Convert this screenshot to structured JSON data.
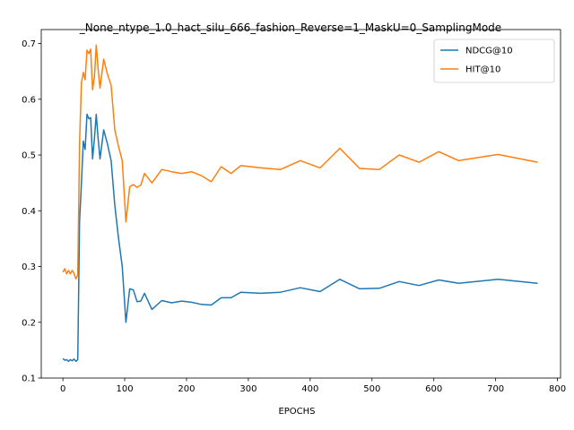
{
  "chart_data": {
    "type": "line",
    "title": "_None_ntype_1.0_hact_silu_666_fashion_Reverse=1_MaskU=0_SamplingMode",
    "xlabel": "EPOCHS",
    "ylabel": "",
    "xlim": [
      -35,
      805
    ],
    "ylim": [
      0.1,
      0.725
    ],
    "xticks": [
      0,
      100,
      200,
      300,
      400,
      500,
      600,
      700,
      800
    ],
    "yticks": [
      0.1,
      0.2,
      0.3,
      0.4,
      0.5,
      0.6,
      0.7
    ],
    "grid": false,
    "legend": "top-right",
    "series": [
      {
        "name": "NDCG@10",
        "color": "#1f77b4",
        "points": [
          [
            0,
            0.135
          ],
          [
            3,
            0.132
          ],
          [
            6,
            0.133
          ],
          [
            9,
            0.13
          ],
          [
            12,
            0.133
          ],
          [
            15,
            0.131
          ],
          [
            18,
            0.134
          ],
          [
            21,
            0.13
          ],
          [
            24,
            0.133
          ],
          [
            27,
            0.38
          ],
          [
            30,
            0.45
          ],
          [
            33,
            0.525
          ],
          [
            36,
            0.51
          ],
          [
            39,
            0.573
          ],
          [
            42,
            0.565
          ],
          [
            45,
            0.567
          ],
          [
            48,
            0.493
          ],
          [
            51,
            0.53
          ],
          [
            54,
            0.573
          ],
          [
            57,
            0.53
          ],
          [
            60,
            0.493
          ],
          [
            66,
            0.545
          ],
          [
            72,
            0.52
          ],
          [
            78,
            0.49
          ],
          [
            84,
            0.41
          ],
          [
            90,
            0.35
          ],
          [
            96,
            0.3
          ],
          [
            102,
            0.2
          ],
          [
            108,
            0.26
          ],
          [
            114,
            0.258
          ],
          [
            120,
            0.237
          ],
          [
            126,
            0.238
          ],
          [
            132,
            0.252
          ],
          [
            144,
            0.223
          ],
          [
            160,
            0.239
          ],
          [
            176,
            0.235
          ],
          [
            192,
            0.238
          ],
          [
            208,
            0.236
          ],
          [
            224,
            0.232
          ],
          [
            240,
            0.231
          ],
          [
            256,
            0.244
          ],
          [
            272,
            0.244
          ],
          [
            288,
            0.254
          ],
          [
            320,
            0.252
          ],
          [
            352,
            0.254
          ],
          [
            384,
            0.262
          ],
          [
            416,
            0.255
          ],
          [
            448,
            0.277
          ],
          [
            480,
            0.26
          ],
          [
            512,
            0.261
          ],
          [
            544,
            0.273
          ],
          [
            576,
            0.266
          ],
          [
            608,
            0.276
          ],
          [
            640,
            0.27
          ],
          [
            704,
            0.277
          ],
          [
            768,
            0.27
          ]
        ]
      },
      {
        "name": "HIT@10",
        "color": "#ff7f0e",
        "points": [
          [
            0,
            0.29
          ],
          [
            3,
            0.296
          ],
          [
            6,
            0.287
          ],
          [
            9,
            0.293
          ],
          [
            12,
            0.287
          ],
          [
            15,
            0.293
          ],
          [
            18,
            0.288
          ],
          [
            21,
            0.278
          ],
          [
            24,
            0.285
          ],
          [
            27,
            0.52
          ],
          [
            30,
            0.63
          ],
          [
            33,
            0.648
          ],
          [
            36,
            0.635
          ],
          [
            39,
            0.688
          ],
          [
            42,
            0.682
          ],
          [
            45,
            0.69
          ],
          [
            48,
            0.617
          ],
          [
            51,
            0.64
          ],
          [
            54,
            0.697
          ],
          [
            57,
            0.655
          ],
          [
            60,
            0.62
          ],
          [
            66,
            0.672
          ],
          [
            72,
            0.645
          ],
          [
            78,
            0.625
          ],
          [
            84,
            0.545
          ],
          [
            90,
            0.515
          ],
          [
            96,
            0.49
          ],
          [
            102,
            0.38
          ],
          [
            108,
            0.443
          ],
          [
            114,
            0.447
          ],
          [
            120,
            0.442
          ],
          [
            126,
            0.446
          ],
          [
            132,
            0.467
          ],
          [
            144,
            0.45
          ],
          [
            160,
            0.474
          ],
          [
            176,
            0.47
          ],
          [
            192,
            0.467
          ],
          [
            208,
            0.47
          ],
          [
            224,
            0.463
          ],
          [
            240,
            0.452
          ],
          [
            256,
            0.479
          ],
          [
            272,
            0.467
          ],
          [
            288,
            0.481
          ],
          [
            320,
            0.477
          ],
          [
            352,
            0.474
          ],
          [
            384,
            0.49
          ],
          [
            416,
            0.477
          ],
          [
            448,
            0.512
          ],
          [
            480,
            0.476
          ],
          [
            512,
            0.474
          ],
          [
            544,
            0.5
          ],
          [
            576,
            0.487
          ],
          [
            608,
            0.506
          ],
          [
            640,
            0.49
          ],
          [
            704,
            0.501
          ],
          [
            768,
            0.487
          ]
        ]
      }
    ]
  }
}
